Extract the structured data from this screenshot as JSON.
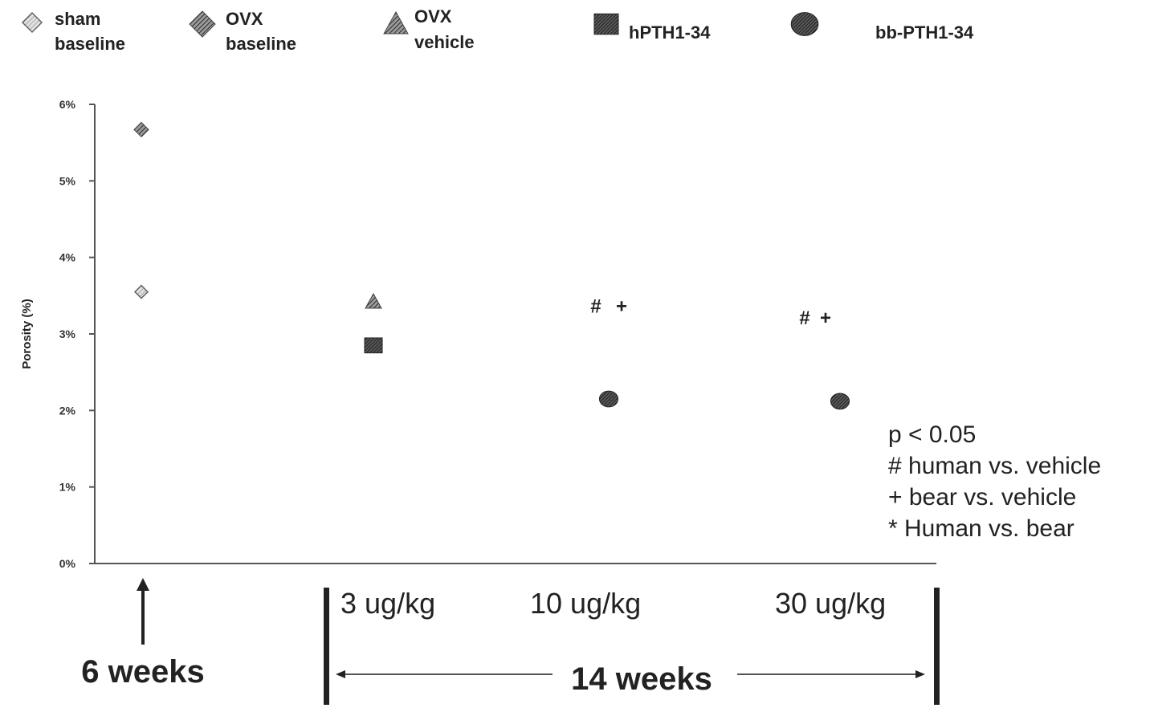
{
  "chart_data": {
    "type": "scatter",
    "title": "",
    "xlabel": "",
    "ylabel": "Porosity (%)",
    "ylim": [
      0,
      6
    ],
    "yticks": [
      "0%",
      "1%",
      "2%",
      "3%",
      "4%",
      "5%",
      "6%"
    ],
    "grid": false,
    "legend_position": "top",
    "series": [
      {
        "name": "sham baseline",
        "marker": "hatched-diamond-outline",
        "points": [
          {
            "x": "6 weeks",
            "y": 3.55
          }
        ]
      },
      {
        "name": "OVX baseline",
        "marker": "hatched-diamond",
        "points": [
          {
            "x": "6 weeks",
            "y": 5.67
          }
        ]
      },
      {
        "name": "OVX vehicle",
        "marker": "hatched-triangle",
        "points": [
          {
            "x": "3 ug/kg",
            "y": 3.42
          }
        ]
      },
      {
        "name": "hPTH1-34",
        "marker": "hatched-square",
        "points": [
          {
            "x": "3 ug/kg",
            "y": 2.85
          },
          {
            "x": "10 ug/kg",
            "y": 2.15
          },
          {
            "x": "30 ug/kg",
            "y": 2.12
          }
        ]
      },
      {
        "name": "bb-PTH1-34",
        "marker": "hatched-circle",
        "points": []
      }
    ],
    "significance_marks": [
      {
        "group": "10 ug/kg",
        "text": "#",
        "y": 3.35
      },
      {
        "group": "10 ug/kg",
        "text": "+",
        "y": 3.35
      },
      {
        "group": "30 ug/kg",
        "text": "#",
        "y": 3.2
      },
      {
        "group": "30 ug/kg",
        "text": "+",
        "y": 3.2
      }
    ],
    "significance_legend": [
      "p < 0.05",
      "# human vs. vehicle",
      "+ bear vs. vehicle",
      "* Human vs. bear"
    ],
    "annotations": {
      "baseline_time": "6 weeks",
      "treatment_time": "14 weeks",
      "doses": [
        "3 ug/kg",
        "10 ug/kg",
        "30 ug/kg"
      ]
    }
  },
  "legend": [
    {
      "line1": "sham",
      "line2": "baseline",
      "marker": "hatched-diamond-outline"
    },
    {
      "line1": "OVX",
      "line2": "baseline",
      "marker": "hatched-diamond"
    },
    {
      "line1": "OVX",
      "line2": "vehicle",
      "marker": "hatched-triangle"
    },
    {
      "line1": "hPTH1-34",
      "line2": "",
      "marker": "hatched-square"
    },
    {
      "line1": "bb-PTH1-34",
      "line2": "",
      "marker": "hatched-circle"
    }
  ]
}
